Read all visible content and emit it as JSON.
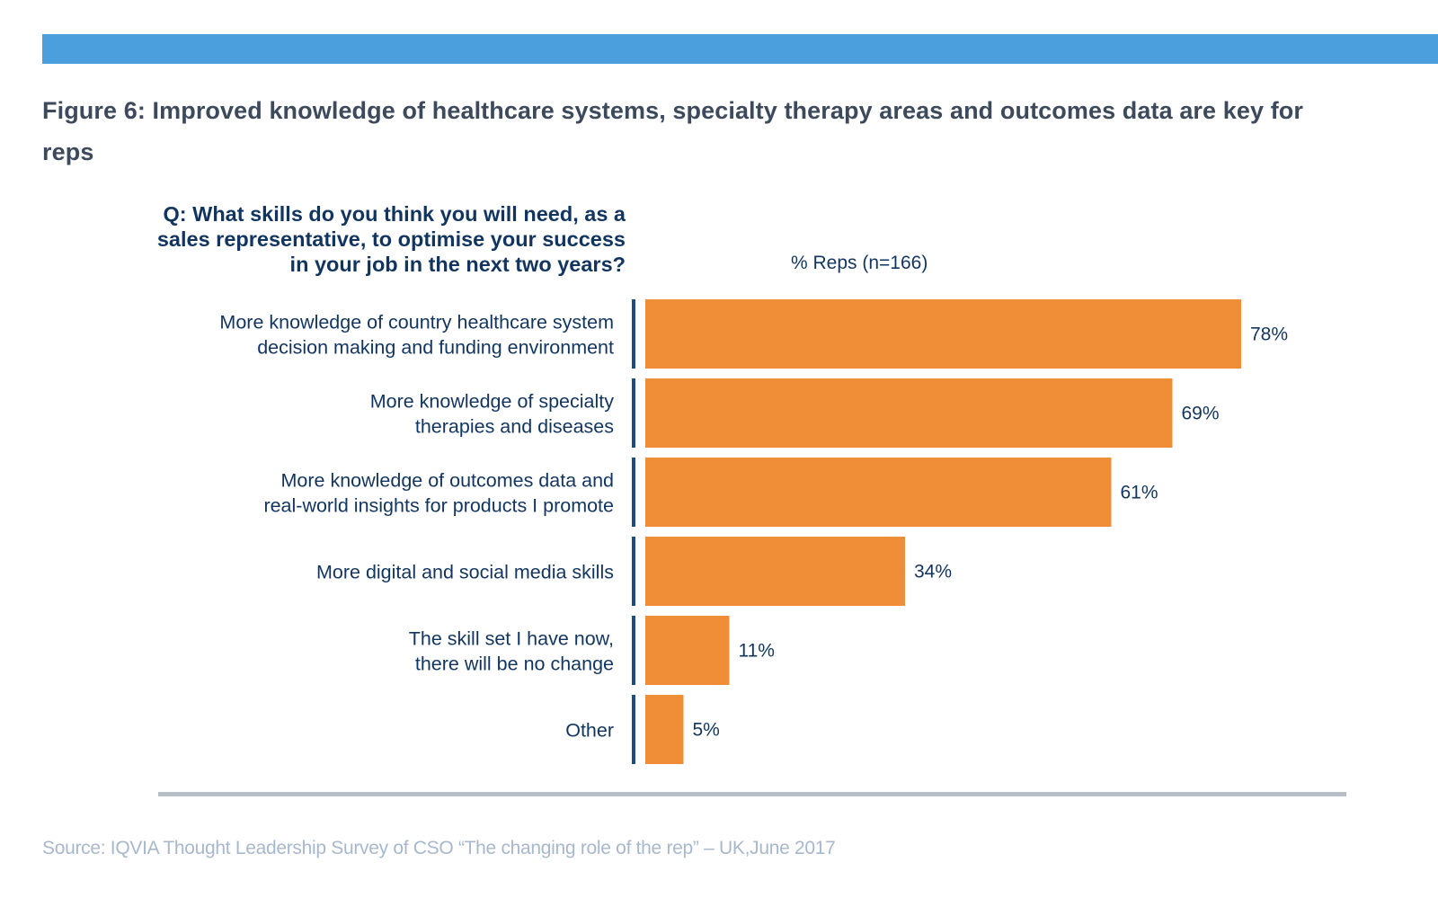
{
  "figure": {
    "title": "Figure 6: Improved knowledge of healthcare systems, specialty therapy areas and outcomes data are key for reps",
    "question": "Q: What skills do you think you will need, as a sales representative, to optimise your success in your job in the next two years?",
    "source": "Source: IQVIA Thought Leadership Survey of CSO “The changing role of the rep” – UK,June 2017"
  },
  "colors": {
    "band": "#4a9fdc",
    "bar": "#ef8e36",
    "text": "#12355f",
    "tick": "#1f4e7e",
    "baseline": "#b8bec8"
  },
  "chart_data": {
    "type": "bar",
    "orientation": "horizontal",
    "title": "Figure 6: Improved knowledge of healthcare systems, specialty therapy areas and outcomes data are key for reps",
    "xlabel": "% Reps (n=166)",
    "ylabel": "",
    "xlim": [
      0,
      78
    ],
    "grid": false,
    "legend": "none",
    "categories": [
      [
        "More knowledge of country healthcare system",
        "decision making and funding environment"
      ],
      [
        "More knowledge of specialty",
        "therapies and diseases"
      ],
      [
        "More knowledge of outcomes data and",
        "real-world insights for products I promote"
      ],
      [
        "More digital and social media skills"
      ],
      [
        "The skill set I have now,",
        "there will be no change"
      ],
      [
        "Other"
      ]
    ],
    "values": [
      78,
      69,
      61,
      34,
      11,
      5
    ],
    "data_labels": [
      "78%",
      "69%",
      "61%",
      "34%",
      "11%",
      "5%"
    ]
  }
}
